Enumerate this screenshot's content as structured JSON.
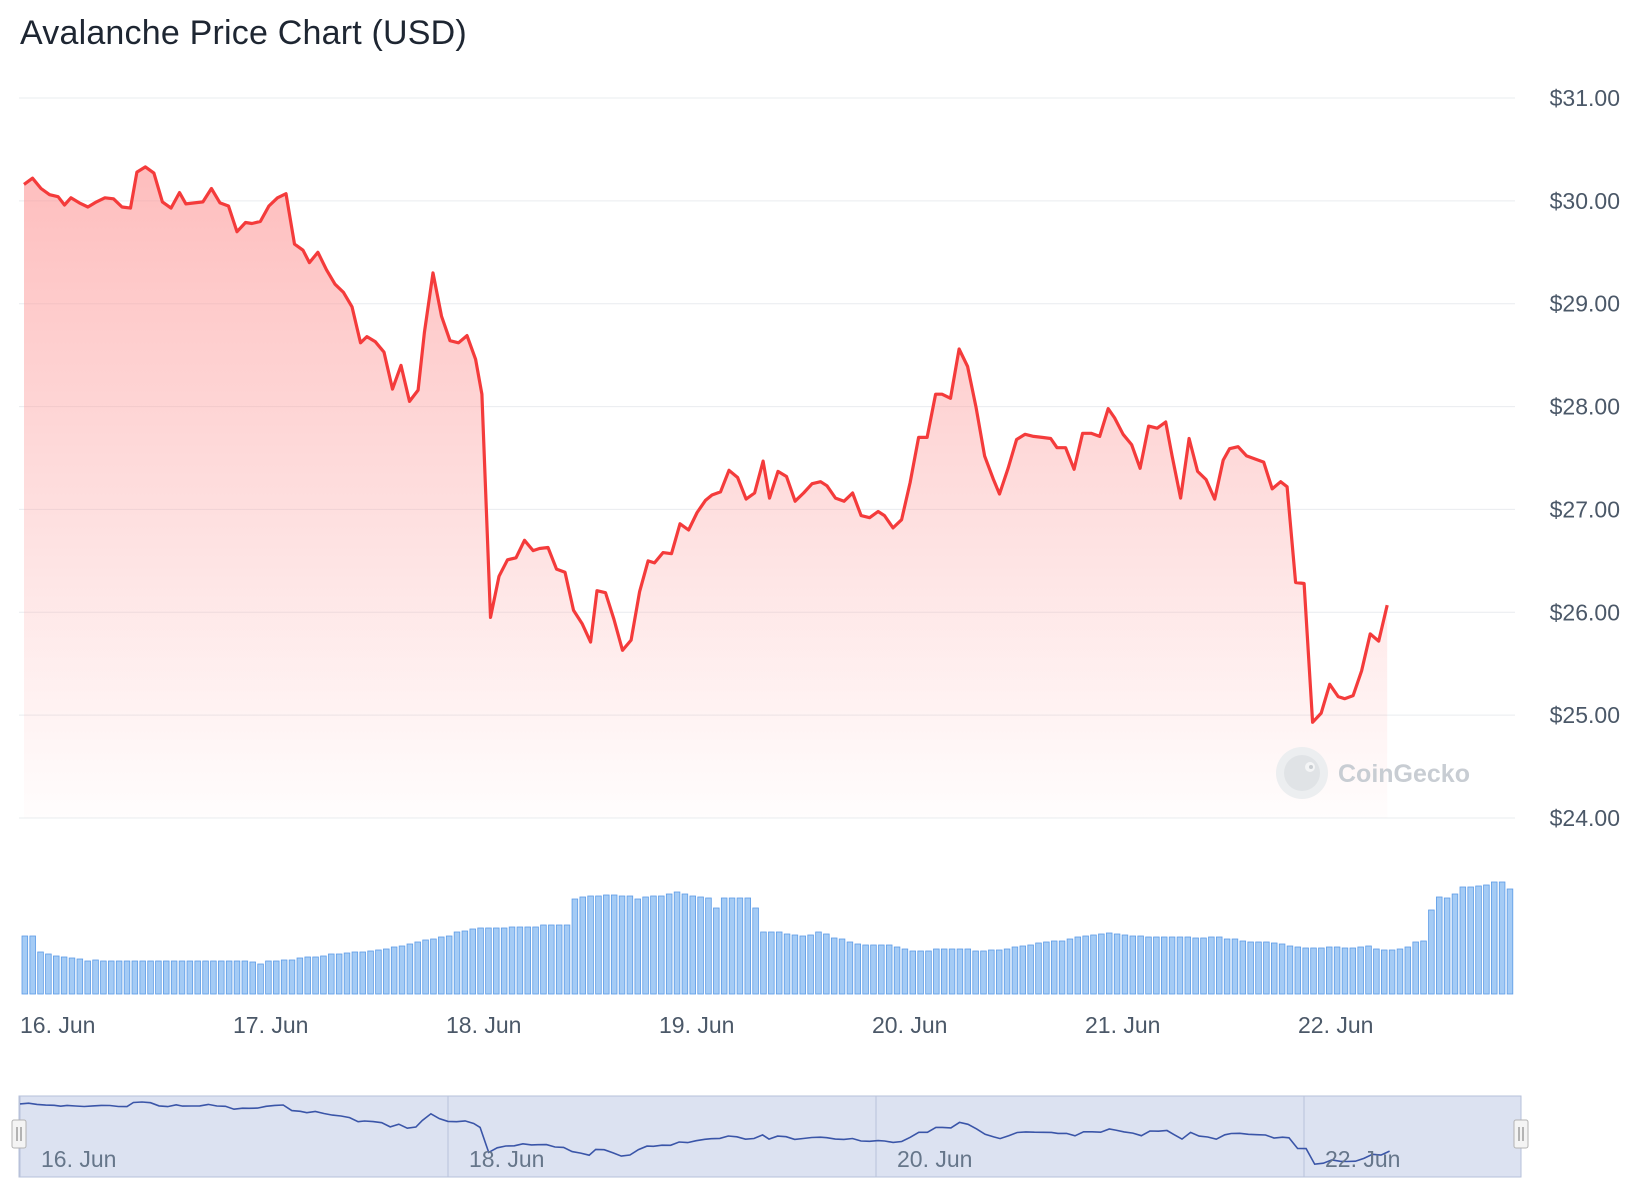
{
  "chart_data": {
    "type": "line",
    "title": "Avalanche Price Chart (USD)",
    "currency": "USD",
    "y_axis": {
      "ylim": [
        24,
        31
      ],
      "ticks": [
        31,
        30,
        29,
        28,
        27,
        26,
        25,
        24
      ],
      "tick_labels": [
        "$31.00",
        "$30.00",
        "$29.00",
        "$28.00",
        "$27.00",
        "$26.00",
        "$25.00",
        "$24.00"
      ],
      "position": "right",
      "grid": true
    },
    "x_axis": {
      "tick_labels": [
        "16. Jun",
        "17. Jun",
        "18. Jun",
        "19. Jun",
        "20. Jun",
        "21. Jun",
        "22. Jun"
      ],
      "tick_days": [
        0,
        1,
        2,
        3,
        4,
        5,
        6
      ],
      "xlim_days": [
        0,
        6.99
      ]
    },
    "series": [
      {
        "color": "#f43b3b",
        "fill": "gradient-red",
        "points": [
          [
            0.0,
            30.16
          ],
          [
            0.04,
            30.22
          ],
          [
            0.08,
            30.12
          ],
          [
            0.12,
            30.06
          ],
          [
            0.16,
            30.04
          ],
          [
            0.19,
            29.96
          ],
          [
            0.22,
            30.03
          ],
          [
            0.26,
            29.98
          ],
          [
            0.3,
            29.94
          ],
          [
            0.34,
            29.99
          ],
          [
            0.38,
            30.03
          ],
          [
            0.42,
            30.02
          ],
          [
            0.46,
            29.94
          ],
          [
            0.5,
            29.93
          ],
          [
            0.53,
            30.28
          ],
          [
            0.57,
            30.33
          ],
          [
            0.61,
            30.27
          ],
          [
            0.65,
            29.99
          ],
          [
            0.69,
            29.93
          ],
          [
            0.73,
            30.08
          ],
          [
            0.76,
            29.97
          ],
          [
            0.8,
            29.98
          ],
          [
            0.84,
            29.99
          ],
          [
            0.88,
            30.12
          ],
          [
            0.92,
            29.98
          ],
          [
            0.96,
            29.95
          ],
          [
            1.0,
            29.7
          ],
          [
            1.04,
            29.79
          ],
          [
            1.07,
            29.78
          ],
          [
            1.11,
            29.8
          ],
          [
            1.15,
            29.95
          ],
          [
            1.19,
            30.03
          ],
          [
            1.23,
            30.07
          ],
          [
            1.27,
            29.58
          ],
          [
            1.31,
            29.52
          ],
          [
            1.34,
            29.4
          ],
          [
            1.38,
            29.5
          ],
          [
            1.42,
            29.33
          ],
          [
            1.46,
            29.19
          ],
          [
            1.5,
            29.11
          ],
          [
            1.54,
            28.97
          ],
          [
            1.58,
            28.62
          ],
          [
            1.61,
            28.68
          ],
          [
            1.65,
            28.63
          ],
          [
            1.69,
            28.53
          ],
          [
            1.73,
            28.17
          ],
          [
            1.77,
            28.4
          ],
          [
            1.81,
            28.05
          ],
          [
            1.85,
            28.16
          ],
          [
            1.88,
            28.72
          ],
          [
            1.92,
            29.3
          ],
          [
            1.96,
            28.88
          ],
          [
            2.0,
            28.64
          ],
          [
            2.04,
            28.62
          ],
          [
            2.08,
            28.69
          ],
          [
            2.12,
            28.46
          ],
          [
            2.15,
            28.12
          ],
          [
            2.19,
            25.95
          ],
          [
            2.23,
            26.35
          ],
          [
            2.27,
            26.51
          ],
          [
            2.31,
            26.53
          ],
          [
            2.35,
            26.7
          ],
          [
            2.39,
            26.6
          ],
          [
            2.42,
            26.62
          ],
          [
            2.46,
            26.63
          ],
          [
            2.5,
            26.42
          ],
          [
            2.54,
            26.39
          ],
          [
            2.58,
            26.02
          ],
          [
            2.62,
            25.89
          ],
          [
            2.66,
            25.71
          ],
          [
            2.69,
            26.21
          ],
          [
            2.73,
            26.19
          ],
          [
            2.77,
            25.93
          ],
          [
            2.81,
            25.63
          ],
          [
            2.85,
            25.73
          ],
          [
            2.89,
            26.2
          ],
          [
            2.93,
            26.5
          ],
          [
            2.96,
            26.48
          ],
          [
            3.0,
            26.58
          ],
          [
            3.04,
            26.57
          ],
          [
            3.08,
            26.86
          ],
          [
            3.12,
            26.8
          ],
          [
            3.16,
            26.97
          ],
          [
            3.2,
            27.09
          ],
          [
            3.23,
            27.14
          ],
          [
            3.27,
            27.17
          ],
          [
            3.31,
            27.38
          ],
          [
            3.35,
            27.31
          ],
          [
            3.39,
            27.1
          ],
          [
            3.43,
            27.16
          ],
          [
            3.47,
            27.47
          ],
          [
            3.5,
            27.11
          ],
          [
            3.54,
            27.37
          ],
          [
            3.58,
            27.32
          ],
          [
            3.62,
            27.08
          ],
          [
            3.66,
            27.16
          ],
          [
            3.7,
            27.25
          ],
          [
            3.74,
            27.27
          ],
          [
            3.77,
            27.23
          ],
          [
            3.81,
            27.11
          ],
          [
            3.85,
            27.08
          ],
          [
            3.89,
            27.16
          ],
          [
            3.93,
            26.94
          ],
          [
            3.97,
            26.92
          ],
          [
            4.01,
            26.98
          ],
          [
            4.04,
            26.94
          ],
          [
            4.08,
            26.82
          ],
          [
            4.12,
            26.9
          ],
          [
            4.16,
            27.26
          ],
          [
            4.2,
            27.7
          ],
          [
            4.24,
            27.7
          ],
          [
            4.28,
            28.12
          ],
          [
            4.31,
            28.12
          ],
          [
            4.35,
            28.08
          ],
          [
            4.39,
            28.56
          ],
          [
            4.43,
            28.39
          ],
          [
            4.47,
            27.99
          ],
          [
            4.51,
            27.52
          ],
          [
            4.55,
            27.3
          ],
          [
            4.58,
            27.15
          ],
          [
            4.62,
            27.4
          ],
          [
            4.66,
            27.68
          ],
          [
            4.7,
            27.73
          ],
          [
            4.74,
            27.71
          ],
          [
            4.78,
            27.7
          ],
          [
            4.82,
            27.69
          ],
          [
            4.85,
            27.6
          ],
          [
            4.89,
            27.6
          ],
          [
            4.93,
            27.39
          ],
          [
            4.97,
            27.74
          ],
          [
            5.01,
            27.74
          ],
          [
            5.05,
            27.71
          ],
          [
            5.09,
            27.98
          ],
          [
            5.12,
            27.89
          ],
          [
            5.16,
            27.73
          ],
          [
            5.2,
            27.63
          ],
          [
            5.24,
            27.4
          ],
          [
            5.28,
            27.81
          ],
          [
            5.32,
            27.79
          ],
          [
            5.36,
            27.85
          ],
          [
            5.39,
            27.52
          ],
          [
            5.43,
            27.11
          ],
          [
            5.47,
            27.69
          ],
          [
            5.51,
            27.37
          ],
          [
            5.55,
            27.29
          ],
          [
            5.59,
            27.1
          ],
          [
            5.63,
            27.48
          ],
          [
            5.66,
            27.59
          ],
          [
            5.7,
            27.61
          ],
          [
            5.74,
            27.52
          ],
          [
            5.78,
            27.49
          ],
          [
            5.82,
            27.46
          ],
          [
            5.86,
            27.2
          ],
          [
            5.9,
            27.27
          ],
          [
            5.93,
            27.22
          ],
          [
            5.97,
            26.29
          ],
          [
            6.01,
            26.28
          ],
          [
            6.05,
            24.93
          ],
          [
            6.09,
            25.02
          ],
          [
            6.13,
            25.3
          ],
          [
            6.17,
            25.18
          ],
          [
            6.2,
            25.16
          ],
          [
            6.24,
            25.19
          ],
          [
            6.28,
            25.43
          ],
          [
            6.32,
            25.79
          ],
          [
            6.36,
            25.72
          ],
          [
            6.4,
            26.07
          ]
        ]
      }
    ],
    "volume": {
      "color": "#a4cbf5",
      "edge_color": "#5c9be6",
      "values": [
        0.58,
        0.58,
        0.42,
        0.4,
        0.38,
        0.37,
        0.36,
        0.35,
        0.33,
        0.34,
        0.33,
        0.33,
        0.33,
        0.33,
        0.33,
        0.33,
        0.33,
        0.33,
        0.33,
        0.33,
        0.33,
        0.33,
        0.33,
        0.33,
        0.33,
        0.33,
        0.33,
        0.33,
        0.33,
        0.32,
        0.3,
        0.33,
        0.33,
        0.34,
        0.34,
        0.36,
        0.37,
        0.37,
        0.38,
        0.4,
        0.4,
        0.41,
        0.42,
        0.42,
        0.43,
        0.44,
        0.45,
        0.47,
        0.48,
        0.5,
        0.52,
        0.54,
        0.55,
        0.57,
        0.58,
        0.62,
        0.63,
        0.65,
        0.66,
        0.66,
        0.66,
        0.66,
        0.67,
        0.67,
        0.67,
        0.67,
        0.69,
        0.69,
        0.69,
        0.69,
        0.95,
        0.97,
        0.98,
        0.98,
        0.99,
        0.99,
        0.98,
        0.98,
        0.95,
        0.97,
        0.98,
        0.98,
        1.0,
        1.02,
        1.0,
        0.98,
        0.97,
        0.96,
        0.86,
        0.96,
        0.96,
        0.96,
        0.96,
        0.86,
        0.62,
        0.62,
        0.62,
        0.6,
        0.59,
        0.58,
        0.59,
        0.62,
        0.6,
        0.56,
        0.55,
        0.52,
        0.5,
        0.49,
        0.49,
        0.49,
        0.49,
        0.47,
        0.45,
        0.43,
        0.43,
        0.43,
        0.45,
        0.45,
        0.45,
        0.45,
        0.45,
        0.43,
        0.43,
        0.44,
        0.44,
        0.45,
        0.47,
        0.48,
        0.49,
        0.51,
        0.52,
        0.53,
        0.53,
        0.55,
        0.57,
        0.58,
        0.59,
        0.6,
        0.61,
        0.6,
        0.59,
        0.58,
        0.58,
        0.57,
        0.57,
        0.57,
        0.57,
        0.57,
        0.57,
        0.56,
        0.56,
        0.57,
        0.57,
        0.55,
        0.55,
        0.53,
        0.52,
        0.52,
        0.52,
        0.51,
        0.5,
        0.48,
        0.47,
        0.46,
        0.46,
        0.46,
        0.47,
        0.47,
        0.46,
        0.46,
        0.47,
        0.48,
        0.45,
        0.44,
        0.44,
        0.45,
        0.47,
        0.52,
        0.53,
        0.84,
        0.97,
        0.96,
        1.0,
        1.07,
        1.07,
        1.08,
        1.09,
        1.12,
        1.12,
        1.05
      ]
    },
    "navigator": {
      "tick_labels": [
        "16. Jun",
        "18. Jun",
        "20. Jun",
        "22. Jun"
      ],
      "tick_days": [
        0,
        2,
        4,
        6
      ],
      "line_color": "#3a55a8",
      "selection_fill": "#dbe1f1"
    },
    "watermark": "CoinGecko"
  }
}
